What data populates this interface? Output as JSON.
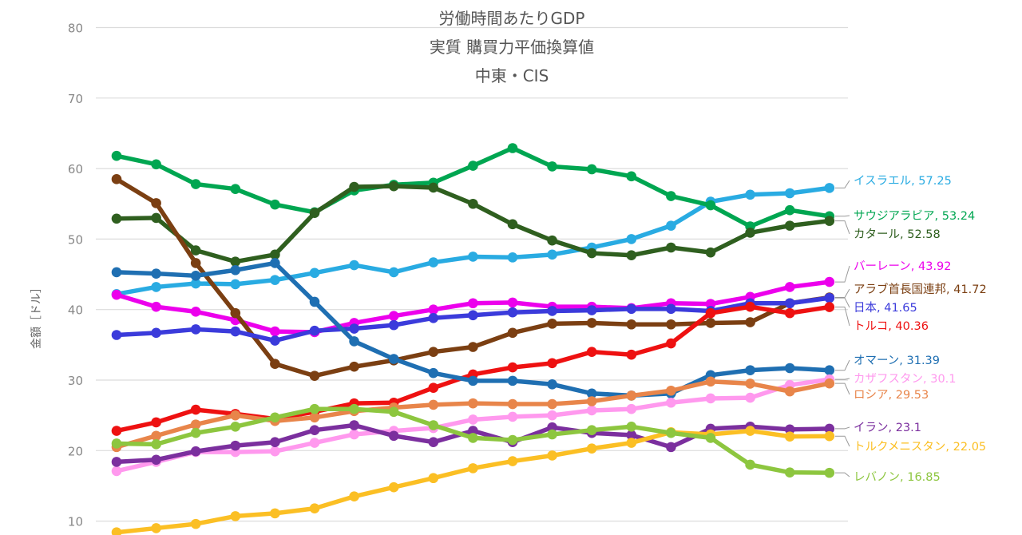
{
  "chart_data": {
    "type": "line",
    "title_lines": [
      "労働時間あたりGDP",
      "実質 購買力平価換算値",
      "中東・CIS"
    ],
    "ylabel": "金額［ドル］",
    "xlabel": "",
    "ylim": [
      10,
      80
    ],
    "yticks": [
      80,
      70,
      60,
      50,
      40,
      30,
      20,
      10
    ],
    "grid": true,
    "legend": "inline-right",
    "series": [
      {
        "name": "イスラエル",
        "label": "イスラエル, 57.25",
        "color": "#29ABE2",
        "values": [
          42.2,
          43.2,
          43.7,
          43.6,
          44.2,
          45.2,
          46.3,
          45.3,
          46.7,
          47.5,
          47.4,
          47.8,
          48.8,
          50.0,
          51.9,
          55.3,
          56.3,
          56.5,
          57.25
        ]
      },
      {
        "name": "サウジアラビア",
        "label": "サウジアラビア, 53.24",
        "color": "#00A651",
        "values": [
          61.8,
          60.6,
          57.8,
          57.1,
          54.9,
          53.8,
          56.9,
          57.7,
          58.0,
          60.4,
          62.9,
          60.3,
          59.9,
          58.9,
          56.1,
          54.8,
          51.8,
          54.1,
          53.24
        ]
      },
      {
        "name": "カタール",
        "label": "カタール, 52.58",
        "color": "#2F5F1F",
        "values": [
          52.9,
          53.0,
          48.4,
          46.8,
          47.8,
          53.7,
          57.4,
          57.5,
          57.3,
          55.0,
          52.1,
          49.8,
          48.0,
          47.7,
          48.8,
          48.1,
          50.9,
          51.9,
          52.58
        ]
      },
      {
        "name": "バーレーン",
        "label": "バーレーン, 43.92",
        "color": "#EC00EC",
        "values": [
          42.1,
          40.4,
          39.7,
          38.5,
          36.9,
          36.8,
          38.1,
          39.1,
          40.0,
          40.9,
          41.0,
          40.4,
          40.4,
          40.2,
          40.9,
          40.8,
          41.8,
          43.2,
          43.92
        ]
      },
      {
        "name": "アラブ首長国連邦",
        "label": "アラブ首長国連邦, 41.72",
        "color": "#7B3F12",
        "values": [
          58.5,
          55.1,
          46.6,
          39.5,
          32.3,
          30.6,
          31.9,
          32.8,
          34.0,
          34.7,
          36.7,
          38.0,
          38.1,
          37.9,
          37.9,
          38.1,
          38.2,
          40.9,
          41.72
        ]
      },
      {
        "name": "日本",
        "label": "日本, 41.65",
        "color": "#3B3BDB",
        "values": [
          36.4,
          36.7,
          37.2,
          36.9,
          35.6,
          37.0,
          37.3,
          37.8,
          38.8,
          39.2,
          39.6,
          39.8,
          39.9,
          40.1,
          40.1,
          39.8,
          40.9,
          40.9,
          41.65
        ]
      },
      {
        "name": "トルコ",
        "label": "トルコ, 40.36",
        "color": "#EE1111",
        "values": [
          22.8,
          24.0,
          25.8,
          25.2,
          24.5,
          25.5,
          26.7,
          26.8,
          28.9,
          30.8,
          31.8,
          32.4,
          34.0,
          33.6,
          35.2,
          39.5,
          40.4,
          39.5,
          40.36
        ]
      },
      {
        "name": "オマーン",
        "label": "オマーン, 31.39",
        "color": "#1F6FB2",
        "values": [
          45.3,
          45.1,
          44.8,
          45.6,
          46.6,
          41.1,
          35.5,
          33.0,
          31.0,
          29.9,
          29.9,
          29.4,
          28.1,
          27.8,
          28.1,
          30.7,
          31.4,
          31.7,
          31.39
        ]
      },
      {
        "name": "カザフスタン",
        "label": "カザフスタン, 30.1",
        "color": "#FF99EE",
        "values": [
          17.1,
          18.4,
          19.8,
          19.8,
          19.9,
          21.1,
          22.3,
          22.8,
          23.2,
          24.4,
          24.8,
          25.0,
          25.7,
          25.9,
          26.8,
          27.4,
          27.5,
          29.3,
          30.1
        ]
      },
      {
        "name": "ロシア",
        "label": "ロシア, 29.53",
        "color": "#E8854A",
        "values": [
          20.5,
          22.1,
          23.7,
          25.0,
          24.2,
          24.7,
          25.6,
          26.1,
          26.5,
          26.7,
          26.6,
          26.6,
          27.0,
          27.8,
          28.5,
          29.8,
          29.5,
          28.4,
          29.53
        ]
      },
      {
        "name": "イラン",
        "label": "イラン, 23.1",
        "color": "#7B2F9E",
        "values": [
          18.4,
          18.7,
          19.9,
          20.7,
          21.2,
          22.9,
          23.6,
          22.1,
          21.2,
          22.8,
          21.2,
          23.3,
          22.5,
          22.2,
          20.5,
          23.1,
          23.4,
          23.0,
          23.1
        ]
      },
      {
        "name": "トルクメニスタン",
        "label": "トルクメニスタン, 22.05",
        "color": "#FBBF24",
        "values": [
          8.4,
          9.0,
          9.6,
          10.7,
          11.1,
          11.8,
          13.5,
          14.8,
          16.1,
          17.5,
          18.5,
          19.3,
          20.3,
          21.1,
          22.6,
          22.3,
          22.8,
          22.0,
          22.05
        ]
      },
      {
        "name": "レバノン",
        "label": "レバノン, 16.85",
        "color": "#8DC63F",
        "values": [
          21.0,
          20.9,
          22.5,
          23.4,
          24.7,
          25.9,
          25.9,
          25.5,
          23.6,
          21.8,
          21.5,
          22.3,
          22.9,
          23.4,
          22.5,
          21.8,
          18.0,
          16.9,
          16.85
        ]
      }
    ]
  }
}
